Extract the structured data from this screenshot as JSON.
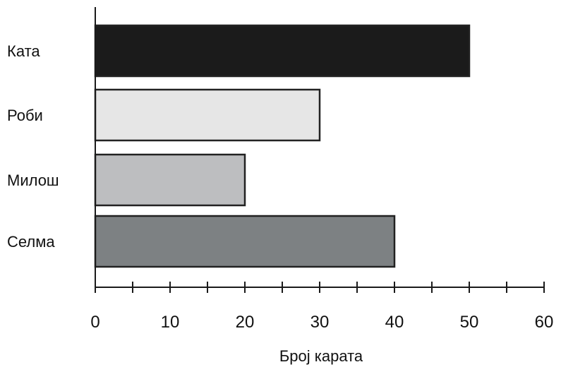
{
  "chart_data": {
    "type": "bar",
    "orientation": "horizontal",
    "categories": [
      "Ката",
      "Роби",
      "Милош",
      "Селма"
    ],
    "values": [
      50,
      30,
      20,
      40
    ],
    "colors": [
      "#1b1b1b",
      "#e6e6e6",
      "#bdbec0",
      "#7d8183"
    ],
    "xlabel": "Броj карата",
    "xlim": [
      0,
      60
    ],
    "major_ticks": [
      0,
      10,
      20,
      30,
      40,
      50,
      60
    ],
    "minor_tick_step": 5,
    "grid": false,
    "legend": "none"
  }
}
